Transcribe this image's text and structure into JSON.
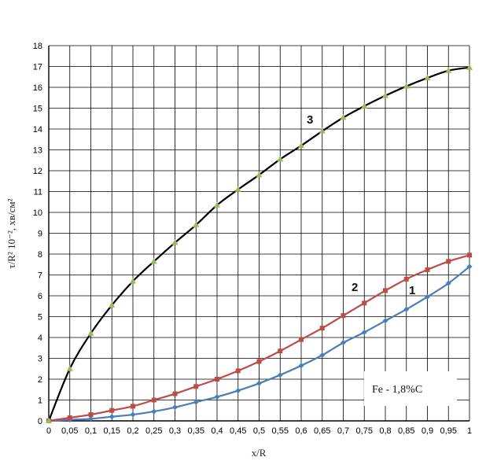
{
  "chart_data": {
    "type": "line",
    "xlabel": "x/R",
    "ylabel": "τ/R² 10⁻², хв/см²",
    "annotation": "Fe - 1,8%C",
    "xlim": [
      0,
      1
    ],
    "ylim": [
      0,
      18
    ],
    "grid": true,
    "x_tick_labels": [
      "0",
      "0,05",
      "0,1",
      "0,15",
      "0,2",
      "0,25",
      "0,3",
      "0,35",
      "0,4",
      "0,45",
      "0,5",
      "0,55",
      "0,6",
      "0,65",
      "0,7",
      "0,75",
      "0,8",
      "0,85",
      "0,9",
      "0,95",
      "1"
    ],
    "y_tick_labels": [
      "0",
      "1",
      "2",
      "3",
      "4",
      "5",
      "6",
      "7",
      "8",
      "9",
      "10",
      "11",
      "12",
      "13",
      "14",
      "15",
      "16",
      "17",
      "18"
    ],
    "x": [
      0,
      0.05,
      0.1,
      0.15,
      0.2,
      0.25,
      0.3,
      0.35,
      0.4,
      0.45,
      0.5,
      0.55,
      0.6,
      0.65,
      0.7,
      0.75,
      0.8,
      0.85,
      0.9,
      0.95,
      1
    ],
    "series": [
      {
        "name": "1",
        "color": "#4a7ebb",
        "marker": "diamond",
        "values": [
          0,
          0.05,
          0.1,
          0.2,
          0.3,
          0.45,
          0.65,
          0.9,
          1.15,
          1.45,
          1.8,
          2.2,
          2.65,
          3.15,
          3.75,
          4.25,
          4.8,
          5.35,
          5.95,
          6.6,
          7.4
        ]
      },
      {
        "name": "2",
        "color": "#be4b48",
        "marker": "square",
        "values": [
          0,
          0.15,
          0.3,
          0.5,
          0.7,
          1.0,
          1.3,
          1.65,
          2.0,
          2.4,
          2.85,
          3.35,
          3.9,
          4.45,
          5.05,
          5.65,
          6.25,
          6.8,
          7.25,
          7.65,
          7.95
        ]
      },
      {
        "name": "3",
        "color": "#000000",
        "marker": "triangle",
        "marker_color": "#9bbb59",
        "values": [
          0,
          2.5,
          4.2,
          5.55,
          6.7,
          7.65,
          8.55,
          9.4,
          10.35,
          11.1,
          11.8,
          12.55,
          13.2,
          13.9,
          14.55,
          15.1,
          15.6,
          16.05,
          16.45,
          16.8,
          16.95
        ]
      }
    ]
  }
}
